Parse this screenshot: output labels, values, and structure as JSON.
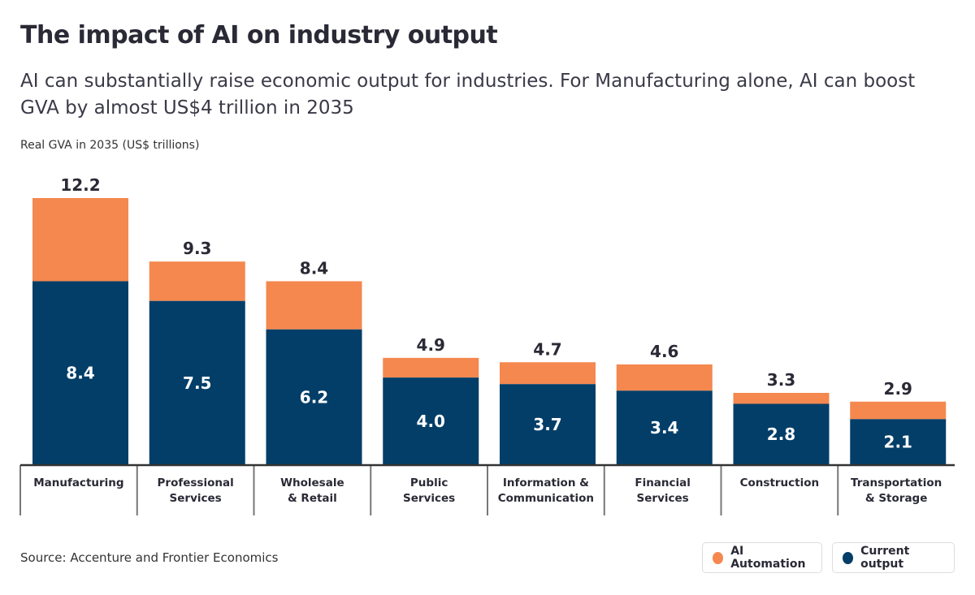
{
  "chart_data": {
    "type": "bar",
    "stacked": true,
    "title": "The impact of AI on industry output",
    "subtitle": "AI can substantially raise economic output for industries. For Manufacturing alone, AI can boost GVA by almost US$4 trillion in 2035",
    "ylabel": "Real GVA in 2035 (US$ trillions)",
    "categories": [
      [
        "Manufacturing"
      ],
      [
        "Professional",
        "Services"
      ],
      [
        "Wholesale",
        "& Retail"
      ],
      [
        "Public",
        "Services"
      ],
      [
        "Information &",
        "Communication"
      ],
      [
        "Financial",
        "Services"
      ],
      [
        "Construction"
      ],
      [
        "Transportation",
        "& Storage"
      ]
    ],
    "series": [
      {
        "name": "Current output",
        "color": "#023e68",
        "values": [
          8.4,
          7.5,
          6.2,
          4.0,
          3.7,
          3.4,
          2.8,
          2.1
        ]
      },
      {
        "name": "AI Automation",
        "color": "#f4884f",
        "totals": [
          12.2,
          9.3,
          8.4,
          4.9,
          4.7,
          4.6,
          3.3,
          2.9
        ]
      }
    ],
    "ylim": [
      0,
      12.2
    ],
    "grid": false,
    "legend": "bottom-right",
    "source": "Source: Accenture and Frontier Economics"
  }
}
